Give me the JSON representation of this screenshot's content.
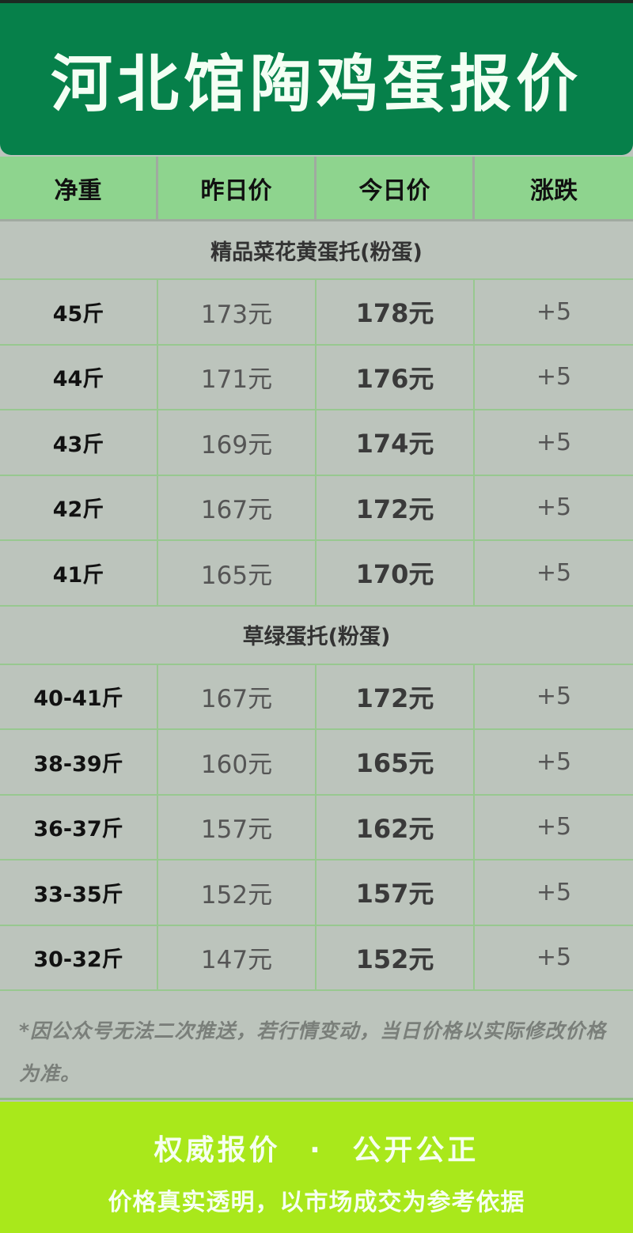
{
  "title": "河北馆陶鸡蛋报价",
  "columns": [
    "净重",
    "昨日价",
    "今日价",
    "涨跌"
  ],
  "sections": [
    {
      "name": "精品菜花黄蛋托(粉蛋)",
      "rows": [
        {
          "weight": "45斤",
          "yesterday": "173元",
          "today": "178元",
          "change": "+5"
        },
        {
          "weight": "44斤",
          "yesterday": "171元",
          "today": "176元",
          "change": "+5"
        },
        {
          "weight": "43斤",
          "yesterday": "169元",
          "today": "174元",
          "change": "+5"
        },
        {
          "weight": "42斤",
          "yesterday": "167元",
          "today": "172元",
          "change": "+5"
        },
        {
          "weight": "41斤",
          "yesterday": "165元",
          "today": "170元",
          "change": "+5"
        }
      ]
    },
    {
      "name": "草绿蛋托(粉蛋)",
      "rows": [
        {
          "weight": "40-41斤",
          "yesterday": "167元",
          "today": "172元",
          "change": "+5"
        },
        {
          "weight": "38-39斤",
          "yesterday": "160元",
          "today": "165元",
          "change": "+5"
        },
        {
          "weight": "36-37斤",
          "yesterday": "157元",
          "today": "162元",
          "change": "+5"
        },
        {
          "weight": "33-35斤",
          "yesterday": "152元",
          "today": "157元",
          "change": "+5"
        },
        {
          "weight": "30-32斤",
          "yesterday": "147元",
          "today": "152元",
          "change": "+5"
        }
      ]
    }
  ],
  "note": "*因公众号无法二次推送，若行情变动，当日价格以实际修改价格为准。",
  "footer": {
    "line1": "权威报价 · 公开公正",
    "line2": "价格真实透明，以市场成交为参考依据"
  },
  "colors": {
    "title_bg": "#06804a",
    "header_bg": "#8ed48e",
    "body_bg": "#bcc4bc",
    "footer_bg": "#a9e81b"
  }
}
